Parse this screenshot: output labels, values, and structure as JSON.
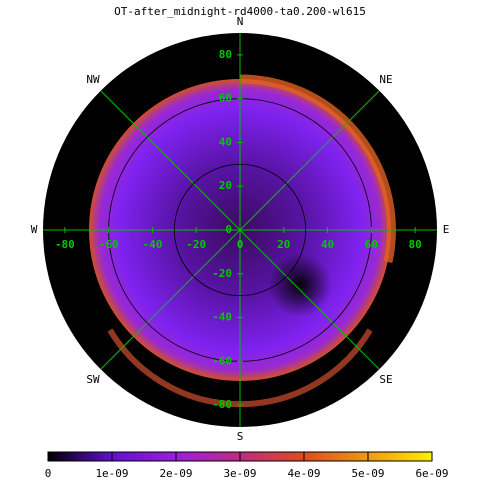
{
  "chart_data": {
    "type": "polar-map",
    "title": "OT-after_midnight-rd4000-ta0.200-wl615",
    "rlim": [
      -90,
      90
    ],
    "xticks": [
      -80,
      -60,
      -40,
      -20,
      0,
      20,
      40,
      60,
      80
    ],
    "yticks": [
      80,
      60,
      40,
      20,
      0,
      -20,
      -40,
      -60,
      -80
    ],
    "rings": [
      30,
      60
    ],
    "directions": [
      "N",
      "NE",
      "E",
      "SE",
      "S",
      "SW",
      "W",
      "NW"
    ],
    "colorbar": {
      "lim": [
        0,
        6e-09
      ],
      "ticks": [
        0,
        {
          "value": 1e-09,
          "label": "1e-09"
        },
        {
          "value": 2e-09,
          "label": "2e-09"
        },
        {
          "value": 3e-09,
          "label": "3e-09"
        },
        {
          "value": 4e-09,
          "label": "4e-09"
        },
        {
          "value": 5e-09,
          "label": "5e-09"
        },
        {
          "value": 6e-09,
          "label": "6e-09"
        }
      ],
      "colors": [
        "#000000",
        "#6010d0",
        "#9a1ee0",
        "#c02a80",
        "#e04a20",
        "#f09a10",
        "#fff000"
      ]
    }
  }
}
